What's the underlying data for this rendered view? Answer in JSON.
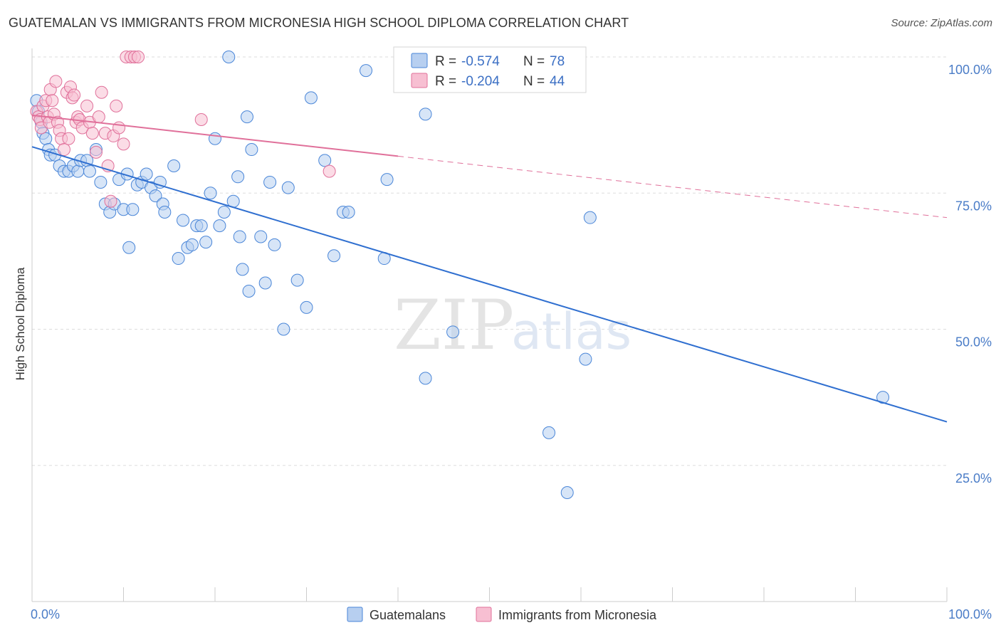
{
  "title": "GUATEMALAN VS IMMIGRANTS FROM MICRONESIA HIGH SCHOOL DIPLOMA CORRELATION CHART",
  "source": "Source: ZipAtlas.com",
  "watermark": {
    "zip": "ZIP",
    "atlas": "atlas"
  },
  "colors": {
    "blue": "#4a86d8",
    "blue_fill": "#b7cff0",
    "blue_line": "#2f6fd0",
    "pink": "#e0709a",
    "pink_fill": "#f7bfd2",
    "pink_line": "#e0709a",
    "grid": "#dddddd",
    "tick_label": "#4a7cc7"
  },
  "legend": {
    "rows": [
      {
        "r_label": "R =",
        "r_value": "-0.574",
        "n_label": "N =",
        "n_value": "78"
      },
      {
        "r_label": "R =",
        "r_value": "-0.204",
        "n_label": "N =",
        "n_value": "44"
      }
    ]
  },
  "chart_data": {
    "type": "scatter",
    "title": "GUATEMALAN VS IMMIGRANTS FROM MICRONESIA HIGH SCHOOL DIPLOMA CORRELATION CHART",
    "xlabel": "",
    "ylabel": "High School Diploma",
    "xlim": [
      0,
      100
    ],
    "ylim": [
      0,
      100
    ],
    "x_ticks": [
      "0.0%",
      "100.0%"
    ],
    "y_ticks": [
      {
        "value": 100,
        "label": "100.0%"
      },
      {
        "value": 75,
        "label": "75.0%"
      },
      {
        "value": 50,
        "label": "50.0%"
      },
      {
        "value": 25,
        "label": "25.0%"
      }
    ],
    "grid": "horizontal dashed",
    "legend_position": "top-center",
    "series": [
      {
        "name": "Guatemalans",
        "color": "#4a86d8",
        "r": -0.574,
        "n": 78,
        "trend": {
          "x0": 0,
          "y0": 83.5,
          "x1": 100,
          "y1": 33.0,
          "dashed_from": null
        },
        "points": [
          [
            0.5,
            92
          ],
          [
            0.7,
            90
          ],
          [
            1,
            88
          ],
          [
            1.2,
            86
          ],
          [
            1.5,
            85
          ],
          [
            1.8,
            83
          ],
          [
            2,
            82
          ],
          [
            2.5,
            82
          ],
          [
            3,
            80
          ],
          [
            3.5,
            79
          ],
          [
            4,
            79
          ],
          [
            4.5,
            80
          ],
          [
            5,
            79
          ],
          [
            5.3,
            81
          ],
          [
            6,
            81
          ],
          [
            6.3,
            79
          ],
          [
            7,
            83
          ],
          [
            7.5,
            77
          ],
          [
            8,
            73
          ],
          [
            8.5,
            71.5
          ],
          [
            9,
            73
          ],
          [
            9.5,
            77.5
          ],
          [
            10,
            72
          ],
          [
            10.4,
            78.5
          ],
          [
            10.6,
            65
          ],
          [
            11,
            72
          ],
          [
            11.5,
            76.5
          ],
          [
            12,
            77
          ],
          [
            12.5,
            78.5
          ],
          [
            13,
            76
          ],
          [
            13.5,
            74.5
          ],
          [
            14,
            77
          ],
          [
            14.3,
            73
          ],
          [
            14.5,
            71.5
          ],
          [
            15.5,
            80
          ],
          [
            16,
            63
          ],
          [
            16.5,
            70
          ],
          [
            17,
            65
          ],
          [
            17.5,
            65.5
          ],
          [
            18,
            69
          ],
          [
            18.5,
            69
          ],
          [
            19,
            66
          ],
          [
            19.5,
            75
          ],
          [
            20,
            85
          ],
          [
            20.5,
            69
          ],
          [
            21,
            71.5
          ],
          [
            21.5,
            100
          ],
          [
            22,
            73.5
          ],
          [
            22.5,
            78
          ],
          [
            22.7,
            67
          ],
          [
            23,
            61
          ],
          [
            23.5,
            89
          ],
          [
            23.7,
            57
          ],
          [
            24,
            83
          ],
          [
            25,
            67
          ],
          [
            25.5,
            58.5
          ],
          [
            26,
            77
          ],
          [
            26.5,
            65.5
          ],
          [
            27.5,
            50
          ],
          [
            28,
            76
          ],
          [
            29,
            59
          ],
          [
            30,
            54
          ],
          [
            30.5,
            92.5
          ],
          [
            32,
            81
          ],
          [
            33,
            63.5
          ],
          [
            34,
            71.5
          ],
          [
            34.6,
            71.5
          ],
          [
            36.5,
            97.5
          ],
          [
            38.5,
            63
          ],
          [
            38.8,
            77.5
          ],
          [
            43,
            89.5
          ],
          [
            43,
            41
          ],
          [
            46,
            49.5
          ],
          [
            56.5,
            31
          ],
          [
            58.5,
            20
          ],
          [
            60.5,
            44.5
          ],
          [
            61,
            70.5
          ],
          [
            93,
            37.5
          ]
        ]
      },
      {
        "name": "Immigrants from Micronesia",
        "color": "#e0709a",
        "r": -0.204,
        "n": 44,
        "trend": {
          "x0": 0,
          "y0": 89.3,
          "x1": 100,
          "y1": 70.5,
          "dashed_from": 40
        },
        "points": [
          [
            0.5,
            90
          ],
          [
            0.7,
            89
          ],
          [
            0.9,
            88.5
          ],
          [
            1,
            87
          ],
          [
            1.2,
            91
          ],
          [
            1.5,
            92
          ],
          [
            1.7,
            89
          ],
          [
            1.9,
            88
          ],
          [
            2,
            94
          ],
          [
            2.2,
            92
          ],
          [
            2.4,
            89.5
          ],
          [
            2.6,
            95.5
          ],
          [
            2.8,
            88
          ],
          [
            3,
            86.5
          ],
          [
            3.2,
            85
          ],
          [
            3.5,
            83
          ],
          [
            3.8,
            93.5
          ],
          [
            4,
            85
          ],
          [
            4.2,
            94.5
          ],
          [
            4.4,
            92.5
          ],
          [
            4.6,
            93
          ],
          [
            4.8,
            88
          ],
          [
            5,
            89
          ],
          [
            5.2,
            88.5
          ],
          [
            5.5,
            87
          ],
          [
            6,
            91
          ],
          [
            6.3,
            88
          ],
          [
            6.6,
            86
          ],
          [
            7,
            82.5
          ],
          [
            7.3,
            89
          ],
          [
            7.6,
            93.5
          ],
          [
            8,
            86
          ],
          [
            8.3,
            80
          ],
          [
            8.6,
            73.5
          ],
          [
            8.9,
            85.5
          ],
          [
            9.2,
            91
          ],
          [
            9.5,
            87
          ],
          [
            10,
            84
          ],
          [
            10.3,
            100
          ],
          [
            10.8,
            100
          ],
          [
            11.2,
            100
          ],
          [
            11.6,
            100
          ],
          [
            18.5,
            88.5
          ],
          [
            32.5,
            79
          ]
        ]
      }
    ]
  },
  "bottom_legend": [
    {
      "label": "Guatemalans"
    },
    {
      "label": "Immigrants from Micronesia"
    }
  ]
}
